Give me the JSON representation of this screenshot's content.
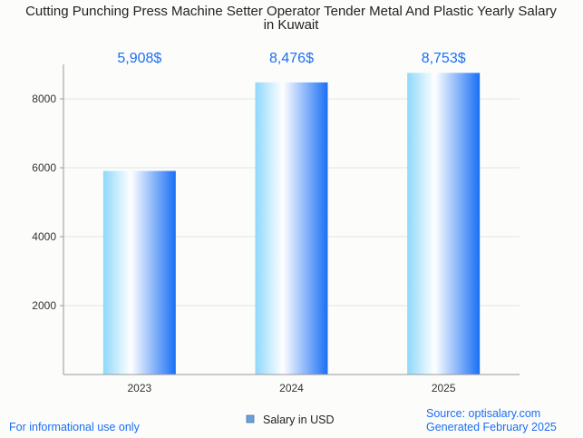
{
  "chart_data": {
    "type": "bar",
    "title_lines": [
      "Cutting Punching Press Machine Setter Operator Tender Metal And Plastic Yearly Salary",
      "in Kuwait"
    ],
    "categories": [
      "2023",
      "2024",
      "2025"
    ],
    "series": [
      {
        "name": "Salary in USD",
        "values": [
          5908,
          8476,
          8753
        ],
        "labels": [
          "5,908$",
          "8,476$",
          "8,753$"
        ]
      }
    ],
    "yticks": [
      2000,
      4000,
      6000,
      8000
    ],
    "ytick_labels": [
      "2000",
      "4000",
      "6000",
      "8000"
    ],
    "ylim": [
      0,
      9000
    ],
    "xlabel": "",
    "ylabel": "",
    "grid": true,
    "legend_position": "bottom-center"
  },
  "footer": {
    "left_note": "For informational use only",
    "source": "Source: optisalary.com",
    "generated": "Generated February 2025"
  },
  "colors": {
    "bar_light": "#8fd8fb",
    "bar_mid": "#ffffff",
    "bar_dark": "#1a6ff5",
    "value_label": "#1a6ff5",
    "footer_text": "#1a6ff5",
    "grid": "#e4e4e4",
    "axis": "#999999",
    "legend_swatch": "#6a9fd8"
  }
}
